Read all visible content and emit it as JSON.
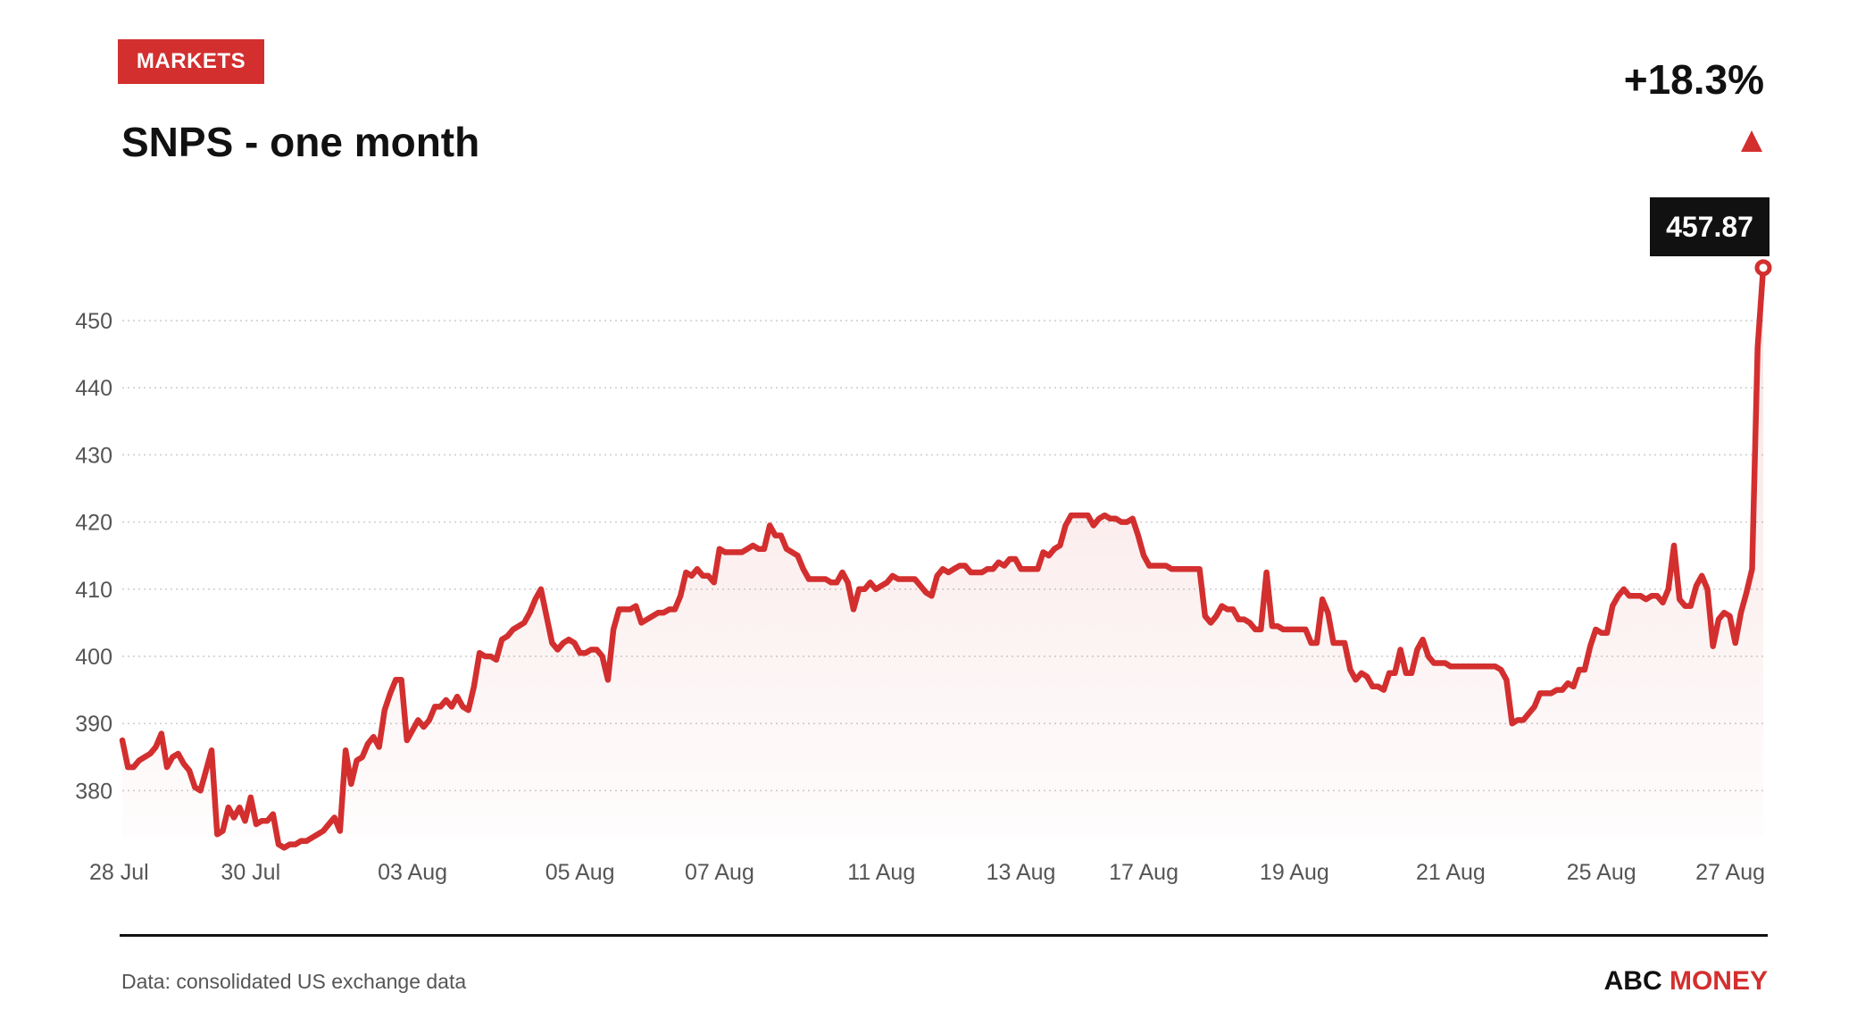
{
  "header": {
    "badge": "MARKETS",
    "title": "SNPS - one month",
    "change": "+18.3%",
    "last_price": "457.87"
  },
  "footer": {
    "source": "Data: consolidated US exchange data",
    "brand_part1": "ABC",
    "brand_part2": "MONEY"
  },
  "colors": {
    "accent": "#d32f2f",
    "text": "#111111",
    "axis_text": "#555555",
    "grid": "#cccccc"
  },
  "icons": {
    "change_direction": "triangle-up-icon"
  },
  "chart_data": {
    "type": "area",
    "title": "SNPS - one month",
    "xlabel": "",
    "ylabel": "",
    "ylim": [
      371,
      458
    ],
    "yticks": [
      380,
      390,
      400,
      410,
      420,
      430,
      440,
      450
    ],
    "grid": true,
    "x_ticks": [
      {
        "label": "28 Jul",
        "i": 0
      },
      {
        "label": "30 Jul",
        "i": 23
      },
      {
        "label": "03 Aug",
        "i": 52
      },
      {
        "label": "05 Aug",
        "i": 82
      },
      {
        "label": "07 Aug",
        "i": 107
      },
      {
        "label": "11 Aug",
        "i": 136
      },
      {
        "label": "13 Aug",
        "i": 161
      },
      {
        "label": "17 Aug",
        "i": 183
      },
      {
        "label": "19 Aug",
        "i": 210
      },
      {
        "label": "21 Aug",
        "i": 238
      },
      {
        "label": "25 Aug",
        "i": 265
      },
      {
        "label": "27 Aug",
        "i": 294
      }
    ],
    "series": [
      {
        "values": [
          387.5,
          383.5,
          383.5,
          384.5,
          385,
          385.5,
          386.5,
          388.5,
          383.5,
          385,
          385.5,
          384,
          383,
          380.5,
          380,
          383,
          386,
          373.5,
          374,
          377.5,
          376,
          377.5,
          375.5,
          379,
          375,
          375.5,
          375.5,
          376.5,
          372,
          371.5,
          372,
          372,
          372.5,
          372.5,
          373,
          373.5,
          374,
          375,
          376,
          374,
          386,
          381,
          384.5,
          385,
          387,
          388,
          386.5,
          392,
          394.5,
          396.5,
          396.5,
          387.5,
          389,
          390.5,
          389.5,
          390.5,
          392.5,
          392.5,
          393.5,
          392.5,
          394,
          392.5,
          392,
          395.5,
          400.5,
          400,
          400,
          399.5,
          402.5,
          403,
          404,
          404.5,
          405,
          406.5,
          408.5,
          410,
          406,
          402,
          401,
          402,
          402.5,
          402,
          400.5,
          400.5,
          401,
          401,
          400,
          396.5,
          404,
          407,
          407,
          407,
          407.5,
          405,
          405.5,
          406,
          406.5,
          406.5,
          407,
          407,
          409,
          412.5,
          412,
          413,
          412,
          412,
          411,
          416,
          415.5,
          415.5,
          415.5,
          415.5,
          416,
          416.5,
          416,
          416,
          419.5,
          418,
          418,
          416,
          415.5,
          415,
          413,
          411.5,
          411.5,
          411.5,
          411.5,
          411,
          411,
          412.5,
          411,
          407,
          410,
          410,
          411,
          410,
          410.5,
          411,
          412,
          411.5,
          411.5,
          411.5,
          411.5,
          410.5,
          409.5,
          409,
          412,
          413,
          412.5,
          413,
          413.5,
          413.5,
          412.5,
          412.5,
          412.5,
          413,
          413,
          414,
          413.5,
          414.5,
          414.5,
          413,
          413,
          413,
          413,
          415.5,
          415,
          416,
          416.5,
          419.5,
          421,
          421,
          421,
          421,
          419.5,
          420.5,
          421,
          420.5,
          420.5,
          420,
          420,
          420.5,
          418,
          415,
          413.5,
          413.5,
          413.5,
          413.5,
          413,
          413,
          413,
          413,
          413,
          413,
          406,
          405,
          406,
          407.5,
          407,
          407,
          405.5,
          405.5,
          405,
          404,
          404,
          412.5,
          404.5,
          404.5,
          404,
          404,
          404,
          404,
          404,
          402,
          402,
          408.5,
          406.5,
          402,
          402,
          402,
          398,
          396.5,
          397.5,
          397,
          395.5,
          395.5,
          395,
          397.5,
          397.5,
          401,
          397.5,
          397.5,
          401,
          402.5,
          400,
          399,
          399,
          399,
          398.5,
          398.5,
          398.5,
          398.5,
          398.5,
          398.5,
          398.5,
          398.5,
          398.5,
          398,
          396.5,
          390,
          390.5,
          390.5,
          391.5,
          392.5,
          394.5,
          394.5,
          394.5,
          395,
          395,
          396,
          395.5,
          398,
          398,
          401.5,
          404,
          403.5,
          403.5,
          407.5,
          409,
          410,
          409,
          409,
          409,
          408.5,
          409,
          409,
          408,
          410,
          416.5,
          408.5,
          407.5,
          407.5,
          410.5,
          412,
          410,
          401.5,
          405.5,
          406.5,
          406,
          402,
          406.5,
          409.5,
          413,
          446,
          457.87
        ]
      }
    ]
  }
}
